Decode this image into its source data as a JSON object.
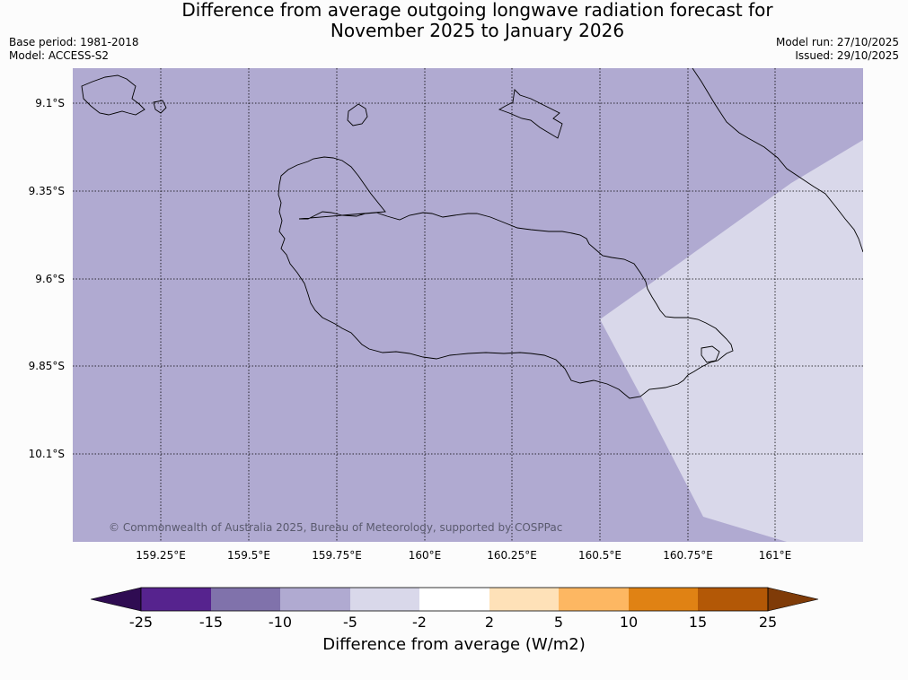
{
  "title_line1": "Difference from average outgoing longwave radiation forecast for",
  "title_line2": "November 2025 to January 2026",
  "base_period": "Base period: 1981-2018",
  "model": "Model: ACCESS-S2",
  "model_run": "Model run: 27/10/2025",
  "issued": "Issued: 29/10/2025",
  "copyright": "© Commonwealth of Australia 2025, Bureau of Meteorology, supported by COSPPac",
  "lon_labels": [
    "159.25°E",
    "159.5°E",
    "159.75°E",
    "160°E",
    "160.25°E",
    "160.5°E",
    "160.75°E",
    "161°E"
  ],
  "lat_labels": [
    "9.1°S",
    "9.35°S",
    "9.6°S",
    "9.85°S",
    "10.1°S"
  ],
  "colorbar": {
    "title": "Difference from average (W/m2)",
    "tick_labels": [
      "-25",
      "-15",
      "-10",
      "-5",
      "-2",
      "2",
      "5",
      "10",
      "15",
      "25"
    ],
    "colors": [
      "#2f0c52",
      "#56238e",
      "#8072ab",
      "#b0aad1",
      "#d9d8ea",
      "#ffffff",
      "#fee1b8",
      "#fdb762",
      "#e08214",
      "#b35806",
      "#7f3b08"
    ]
  },
  "map_fill": {
    "background_color": "#b0aad1",
    "region_color": "#d9d8ea"
  }
}
